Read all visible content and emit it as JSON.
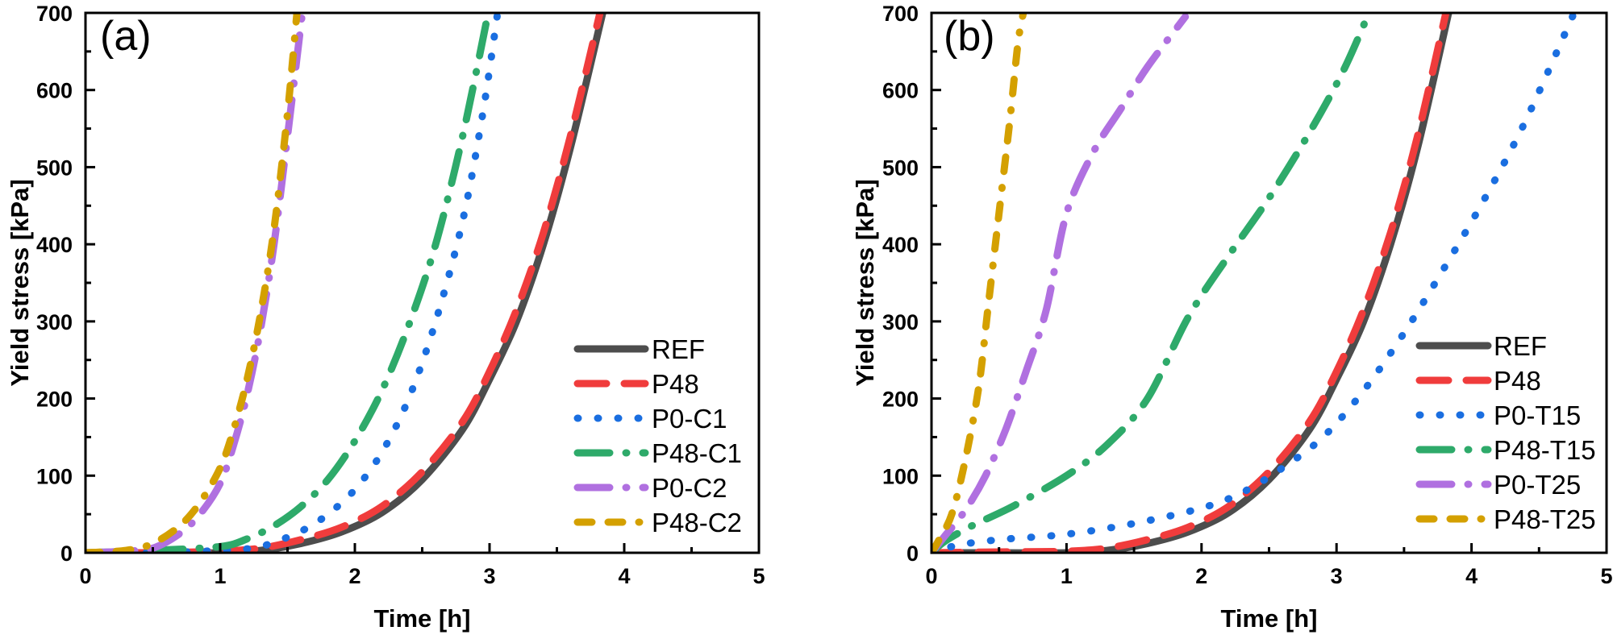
{
  "chart_data": [
    {
      "type": "line",
      "panel_label": "(a)",
      "xlabel": "Time [h]",
      "ylabel": "Yield stress [kPa]",
      "xlim": [
        0,
        5
      ],
      "ylim": [
        0,
        700
      ],
      "x_ticks": [
        "0",
        "1",
        "2",
        "3",
        "4",
        "5"
      ],
      "y_ticks": [
        "0",
        "100",
        "200",
        "300",
        "400",
        "500",
        "600",
        "700"
      ],
      "grid": false,
      "legend_position": "bottom-right",
      "series": [
        {
          "name": "REF",
          "color": "#4d4d4d",
          "style": "solid",
          "x": [
            0,
            0.5,
            1.0,
            1.3,
            1.6,
            1.9,
            2.2,
            2.5,
            2.8,
            3.0,
            3.2,
            3.4,
            3.6,
            3.84
          ],
          "y": [
            0,
            0,
            0,
            3,
            12,
            27,
            52,
            95,
            160,
            225,
            300,
            400,
            525,
            700
          ]
        },
        {
          "name": "P48",
          "color": "#f03c3c",
          "style": "dash",
          "x": [
            0,
            0.5,
            1.0,
            1.3,
            1.6,
            1.9,
            2.2,
            2.5,
            2.8,
            3.0,
            3.2,
            3.4,
            3.6,
            3.82
          ],
          "y": [
            0,
            0,
            2,
            6,
            17,
            33,
            60,
            105,
            170,
            235,
            315,
            415,
            540,
            700
          ]
        },
        {
          "name": "P0-C1",
          "color": "#1a6ee0",
          "style": "dot",
          "x": [
            0,
            0.5,
            1.0,
            1.3,
            1.6,
            1.8,
            2.0,
            2.2,
            2.4,
            2.6,
            2.8,
            2.95,
            3.06
          ],
          "y": [
            0,
            0,
            3,
            8,
            28,
            50,
            82,
            130,
            200,
            300,
            430,
            570,
            700
          ]
        },
        {
          "name": "P48-C1",
          "color": "#2eaa6a",
          "style": "dashdot",
          "x": [
            0,
            0.5,
            1.0,
            1.2,
            1.4,
            1.6,
            1.8,
            2.0,
            2.2,
            2.4,
            2.6,
            2.8,
            2.99
          ],
          "y": [
            0,
            3,
            8,
            18,
            35,
            60,
            95,
            145,
            210,
            295,
            400,
            540,
            700
          ]
        },
        {
          "name": "P0-C2",
          "color": "#b070e0",
          "style": "dashdot",
          "x": [
            0,
            0.3,
            0.5,
            0.7,
            0.85,
            1.0,
            1.1,
            1.2,
            1.3,
            1.4,
            1.5,
            1.61
          ],
          "y": [
            0,
            2,
            6,
            25,
            50,
            90,
            140,
            205,
            290,
            400,
            540,
            700
          ]
        },
        {
          "name": "P48-C2",
          "color": "#d4a000",
          "style": "dashdash",
          "x": [
            0,
            0.3,
            0.5,
            0.7,
            0.85,
            1.0,
            1.1,
            1.2,
            1.3,
            1.4,
            1.5,
            1.57
          ],
          "y": [
            0,
            3,
            12,
            35,
            65,
            110,
            160,
            225,
            310,
            420,
            570,
            700
          ]
        }
      ]
    },
    {
      "type": "line",
      "panel_label": "(b)",
      "xlabel": "Time [h]",
      "ylabel": "Yield stress [kPa]",
      "xlim": [
        0,
        5
      ],
      "ylim": [
        0,
        700
      ],
      "x_ticks": [
        "0",
        "1",
        "2",
        "3",
        "4",
        "5"
      ],
      "y_ticks": [
        "0",
        "100",
        "200",
        "300",
        "400",
        "500",
        "600",
        "700"
      ],
      "grid": false,
      "legend_position": "bottom-right",
      "series": [
        {
          "name": "REF",
          "color": "#4d4d4d",
          "style": "solid",
          "x": [
            0,
            0.5,
            1.0,
            1.3,
            1.6,
            1.9,
            2.2,
            2.5,
            2.8,
            3.0,
            3.2,
            3.4,
            3.6,
            3.83
          ],
          "y": [
            0,
            0,
            0,
            3,
            12,
            27,
            52,
            95,
            160,
            225,
            300,
            400,
            525,
            700
          ]
        },
        {
          "name": "P48",
          "color": "#f03c3c",
          "style": "dash",
          "x": [
            0,
            0.5,
            1.0,
            1.3,
            1.6,
            1.9,
            2.2,
            2.5,
            2.8,
            3.0,
            3.2,
            3.4,
            3.6,
            3.81
          ],
          "y": [
            0,
            1,
            2,
            6,
            17,
            33,
            60,
            105,
            170,
            235,
            315,
            415,
            540,
            700
          ]
        },
        {
          "name": "P0-T15",
          "color": "#1a6ee0",
          "style": "dot",
          "x": [
            0,
            0.2,
            0.5,
            1.0,
            1.5,
            2.0,
            2.3,
            2.6,
            2.9,
            3.2,
            3.5,
            3.8,
            4.1,
            4.4,
            4.76
          ],
          "y": [
            0,
            10,
            17,
            24,
            38,
            58,
            78,
            110,
            150,
            210,
            285,
            370,
            460,
            560,
            700
          ]
        },
        {
          "name": "P48-T15",
          "color": "#2eaa6a",
          "style": "dashdot",
          "x": [
            0,
            0.1,
            0.3,
            0.6,
            1.0,
            1.3,
            1.6,
            1.9,
            2.2,
            2.5,
            2.8,
            3.05,
            3.24
          ],
          "y": [
            0,
            15,
            35,
            60,
            100,
            140,
            200,
            305,
            385,
            460,
            545,
            625,
            700
          ]
        },
        {
          "name": "P0-T25",
          "color": "#b070e0",
          "style": "dashdot",
          "x": [
            0,
            0.1,
            0.25,
            0.4,
            0.55,
            0.7,
            0.85,
            1.0,
            1.2,
            1.4,
            1.6,
            1.88
          ],
          "y": [
            0,
            22,
            55,
            100,
            160,
            235,
            315,
            440,
            520,
            575,
            630,
            695
          ]
        },
        {
          "name": "P48-T25",
          "color": "#d4a000",
          "style": "dashdash",
          "x": [
            0,
            0.05,
            0.15,
            0.25,
            0.35,
            0.42,
            0.5,
            0.58,
            0.64,
            0.68
          ],
          "y": [
            0,
            15,
            50,
            120,
            215,
            320,
            440,
            560,
            660,
            700
          ]
        }
      ]
    }
  ]
}
